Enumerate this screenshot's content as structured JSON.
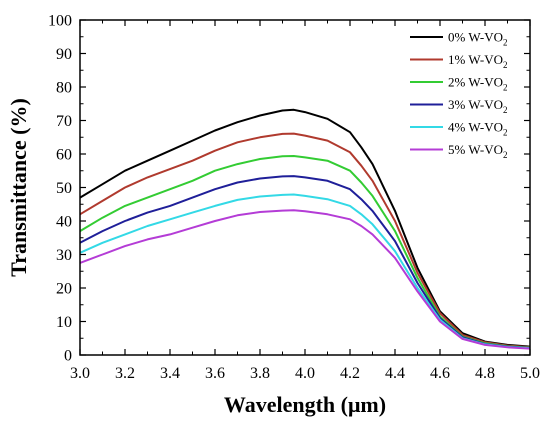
{
  "chart_data": {
    "type": "line",
    "xlabel": "Wavelength (μm)",
    "ylabel": "Transmittance (%)",
    "xlim": [
      3.0,
      5.0
    ],
    "ylim": [
      0,
      100
    ],
    "xticks": [
      "3.0",
      "3.2",
      "3.4",
      "3.6",
      "3.8",
      "4.0",
      "4.2",
      "4.4",
      "4.6",
      "4.8",
      "5.0"
    ],
    "yticks": [
      "0",
      "10",
      "20",
      "30",
      "40",
      "50",
      "60",
      "70",
      "80",
      "90",
      "100"
    ],
    "grid": false,
    "legend_position": "top-right",
    "x": [
      3.0,
      3.1,
      3.2,
      3.3,
      3.4,
      3.5,
      3.6,
      3.7,
      3.8,
      3.9,
      3.95,
      4.0,
      4.1,
      4.2,
      4.25,
      4.3,
      4.4,
      4.5,
      4.6,
      4.7,
      4.8,
      4.9,
      5.0
    ],
    "series": [
      {
        "name": "0% W-VO",
        "subscript": "2",
        "color": "#000000",
        "values": [
          47,
          51,
          55,
          58,
          61,
          64,
          67,
          69.5,
          71.5,
          73,
          73.2,
          72.5,
          70.5,
          66.5,
          62,
          57,
          43,
          26,
          13,
          6.5,
          4,
          3,
          2.5
        ]
      },
      {
        "name": "1% W-VO",
        "subscript": "2",
        "color": "#b03a2e",
        "values": [
          42,
          46,
          50,
          53,
          55.5,
          58,
          61,
          63.5,
          65,
          66,
          66.1,
          65.5,
          64,
          60.5,
          56.5,
          52,
          40,
          24.5,
          12.5,
          6,
          3.8,
          2.8,
          2.3
        ]
      },
      {
        "name": "2% W-VO",
        "subscript": "2",
        "color": "#33cc33",
        "values": [
          37,
          41,
          44.5,
          47,
          49.5,
          52,
          55,
          57,
          58.5,
          59.3,
          59.4,
          59,
          58,
          55,
          51.5,
          47.5,
          37,
          23,
          11.5,
          5.5,
          3.5,
          2.6,
          2.2
        ]
      },
      {
        "name": "3% W-VO",
        "subscript": "2",
        "color": "#1f1f99",
        "values": [
          33.5,
          37,
          40,
          42.5,
          44.5,
          47,
          49.5,
          51.5,
          52.7,
          53.3,
          53.4,
          53,
          52,
          49.5,
          46.5,
          43,
          34,
          21.5,
          11,
          5.3,
          3.3,
          2.5,
          2.1
        ]
      },
      {
        "name": "4% W-VO",
        "subscript": "2",
        "color": "#33d9e6",
        "values": [
          30.5,
          33.5,
          36,
          38.5,
          40.5,
          42.5,
          44.5,
          46.3,
          47.3,
          47.8,
          47.9,
          47.5,
          46.5,
          44.5,
          42,
          39,
          31,
          20,
          10.5,
          5,
          3.2,
          2.4,
          2
        ]
      },
      {
        "name": "5% W-VO",
        "subscript": "2",
        "color": "#b43cd6",
        "values": [
          27.5,
          30,
          32.5,
          34.5,
          36,
          38,
          40,
          41.7,
          42.7,
          43.1,
          43.2,
          42.9,
          42,
          40.5,
          38.5,
          36,
          29,
          19,
          10,
          4.8,
          3,
          2.3,
          1.9
        ]
      }
    ]
  }
}
